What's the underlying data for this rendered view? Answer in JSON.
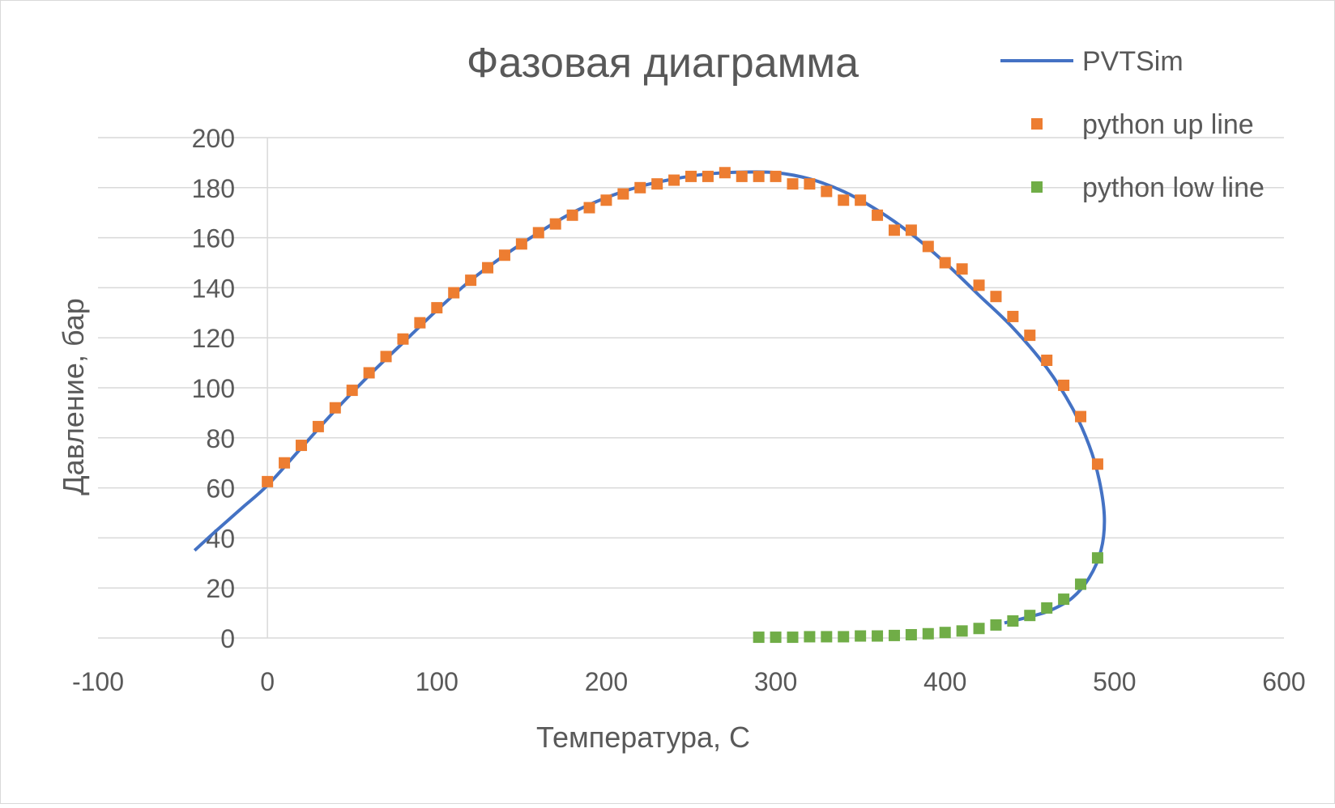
{
  "chart_data": {
    "type": "scatter",
    "title": "Фазовая диаграмма",
    "xlabel": "Температура, С",
    "ylabel": "Давление, бар",
    "xlim": [
      -100,
      600
    ],
    "ylim": [
      0,
      200
    ],
    "xticks": [
      -100,
      0,
      100,
      200,
      300,
      400,
      500,
      600
    ],
    "yticks": [
      0,
      20,
      40,
      60,
      80,
      100,
      120,
      140,
      160,
      180,
      200
    ],
    "grid": "horizontal",
    "legend_position": "top-right",
    "series": [
      {
        "name": "PVTSim",
        "kind": "line",
        "color": "#4472C4",
        "points": [
          [
            -43,
            35
          ],
          [
            -30,
            43
          ],
          [
            -15,
            52
          ],
          [
            0,
            61
          ],
          [
            20,
            76
          ],
          [
            40,
            91
          ],
          [
            60,
            105
          ],
          [
            80,
            118
          ],
          [
            100,
            131
          ],
          [
            120,
            143
          ],
          [
            140,
            153
          ],
          [
            160,
            162
          ],
          [
            180,
            170
          ],
          [
            200,
            176
          ],
          [
            220,
            180.5
          ],
          [
            240,
            183.5
          ],
          [
            260,
            185.5
          ],
          [
            280,
            186.2
          ],
          [
            300,
            186
          ],
          [
            320,
            183.5
          ],
          [
            340,
            178.5
          ],
          [
            360,
            171
          ],
          [
            380,
            161.5
          ],
          [
            400,
            150
          ],
          [
            420,
            137
          ],
          [
            440,
            124
          ],
          [
            460,
            108
          ],
          [
            475,
            92
          ],
          [
            485,
            77
          ],
          [
            491,
            63
          ],
          [
            494,
            48
          ],
          [
            492,
            35
          ],
          [
            485,
            24
          ],
          [
            475,
            16
          ],
          [
            462,
            11
          ],
          [
            450,
            8.5
          ],
          [
            435,
            6
          ]
        ]
      },
      {
        "name": "python up line",
        "kind": "marker",
        "color": "#ED7D31",
        "points": [
          [
            0,
            62.5
          ],
          [
            10,
            70
          ],
          [
            20,
            77
          ],
          [
            30,
            84.5
          ],
          [
            40,
            92
          ],
          [
            50,
            99
          ],
          [
            60,
            106
          ],
          [
            70,
            112.5
          ],
          [
            80,
            119.5
          ],
          [
            90,
            126
          ],
          [
            100,
            132
          ],
          [
            110,
            138
          ],
          [
            120,
            143
          ],
          [
            130,
            148
          ],
          [
            140,
            153
          ],
          [
            150,
            157.5
          ],
          [
            160,
            162
          ],
          [
            170,
            165.5
          ],
          [
            180,
            169
          ],
          [
            190,
            172
          ],
          [
            200,
            175
          ],
          [
            210,
            177.5
          ],
          [
            220,
            180
          ],
          [
            230,
            181.5
          ],
          [
            240,
            183
          ],
          [
            250,
            184.5
          ],
          [
            260,
            184.5
          ],
          [
            270,
            186
          ],
          [
            280,
            184.5
          ],
          [
            290,
            184.5
          ],
          [
            300,
            184.5
          ],
          [
            310,
            181.5
          ],
          [
            320,
            181.5
          ],
          [
            330,
            178.5
          ],
          [
            340,
            175
          ],
          [
            350,
            175
          ],
          [
            360,
            169
          ],
          [
            370,
            163
          ],
          [
            380,
            163
          ],
          [
            390,
            156.5
          ],
          [
            400,
            150
          ],
          [
            410,
            147.5
          ],
          [
            420,
            141
          ],
          [
            430,
            136.5
          ],
          [
            440,
            128.5
          ],
          [
            450,
            121
          ],
          [
            460,
            111
          ],
          [
            470,
            101
          ],
          [
            480,
            88.5
          ],
          [
            490,
            69.5
          ]
        ]
      },
      {
        "name": "python low line",
        "kind": "marker",
        "color": "#70AD47",
        "points": [
          [
            290,
            0.3
          ],
          [
            300,
            0.3
          ],
          [
            310,
            0.3
          ],
          [
            320,
            0.5
          ],
          [
            330,
            0.5
          ],
          [
            340,
            0.5
          ],
          [
            350,
            0.8
          ],
          [
            360,
            0.8
          ],
          [
            370,
            1
          ],
          [
            380,
            1.3
          ],
          [
            390,
            1.7
          ],
          [
            400,
            2.2
          ],
          [
            410,
            2.8
          ],
          [
            420,
            3.8
          ],
          [
            430,
            5.2
          ],
          [
            440,
            6.8
          ],
          [
            450,
            9
          ],
          [
            460,
            12
          ],
          [
            470,
            15.5
          ],
          [
            480,
            21.5
          ],
          [
            490,
            32
          ]
        ]
      }
    ]
  }
}
